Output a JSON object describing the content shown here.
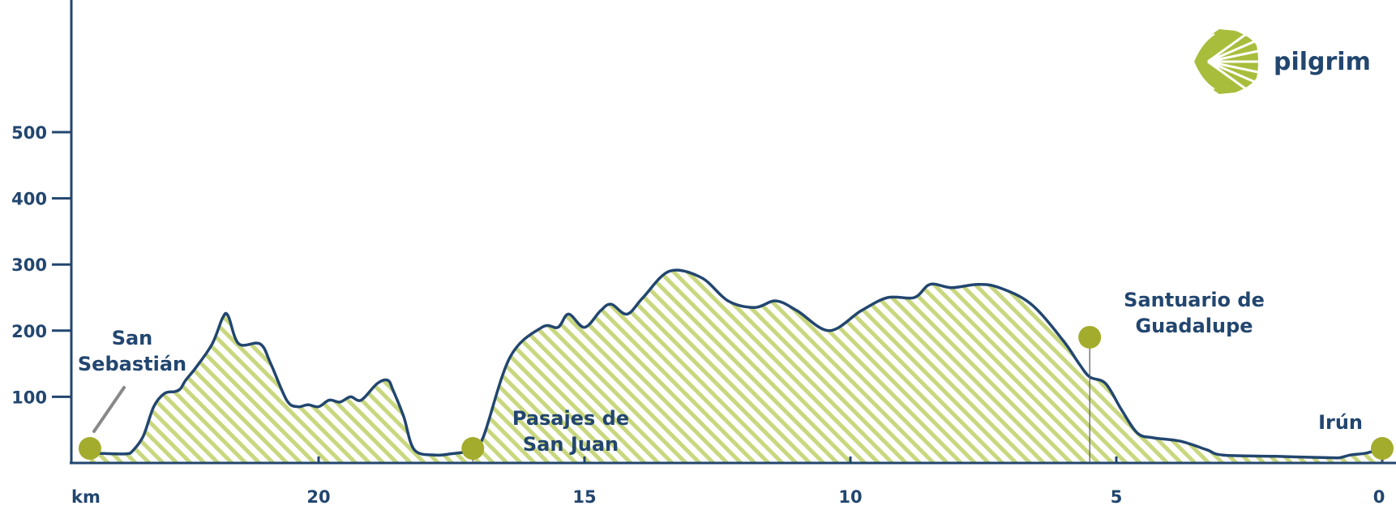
{
  "chart_data": {
    "type": "area",
    "title": "",
    "xlabel": "km",
    "ylabel": "",
    "x_reversed": true,
    "xlim": [
      24.6,
      0
    ],
    "ylim": [
      0,
      600
    ],
    "x_ticks": [
      20,
      15,
      10,
      5,
      0
    ],
    "y_ticks": [
      100,
      200,
      300,
      400,
      500
    ],
    "grid": false,
    "fill_pattern": "diagonal-stripes",
    "colors": {
      "line": "#22466f",
      "fill_stripe": "#c9d77e",
      "marker": "#a3ac2c",
      "connector": "#888888",
      "logo": "#a9bd3c"
    },
    "series": [
      {
        "x": [
          24.3,
          23.9,
          23.6,
          23.5,
          23.3,
          23.1,
          22.9,
          22.7,
          22.6,
          22.5,
          22.3,
          22.0,
          21.8,
          21.7,
          21.5,
          21.1,
          20.9,
          20.6,
          20.4,
          20.2,
          20.0,
          19.8,
          19.6,
          19.4,
          19.2,
          18.9,
          18.7,
          18.6,
          18.4,
          18.2,
          17.8,
          17.5,
          17.2,
          17.1,
          16.9,
          16.4,
          15.8,
          15.5,
          15.3,
          15.0,
          14.7,
          14.5,
          14.2,
          13.9,
          13.4,
          12.8,
          12.3,
          11.8,
          11.4,
          11.0,
          10.4,
          9.8,
          9.3,
          8.8,
          8.5,
          8.1,
          7.6,
          7.2,
          6.6,
          6.0,
          5.7,
          5.5,
          5.2,
          4.9,
          4.6,
          4.3,
          3.8,
          3.3,
          3.0,
          2.0,
          1.0,
          0.8,
          0.6,
          0.3,
          0.0
        ],
        "y": [
          15,
          14,
          14,
          18,
          40,
          85,
          105,
          108,
          112,
          125,
          145,
          180,
          220,
          222,
          180,
          180,
          150,
          95,
          85,
          88,
          85,
          95,
          92,
          100,
          95,
          120,
          125,
          110,
          70,
          20,
          12,
          14,
          17,
          20,
          40,
          160,
          205,
          205,
          225,
          205,
          230,
          240,
          225,
          250,
          290,
          280,
          245,
          235,
          245,
          230,
          200,
          230,
          250,
          250,
          270,
          265,
          270,
          265,
          240,
          185,
          150,
          130,
          120,
          80,
          45,
          38,
          33,
          20,
          12,
          10,
          8,
          8,
          12,
          15,
          22
        ]
      }
    ],
    "places": [
      {
        "name_lines": [
          "San",
          "Sebastián"
        ],
        "km": 24.3,
        "elevation": 22
      },
      {
        "name_lines": [
          "Pasajes de",
          "San Juan"
        ],
        "km": 17.1,
        "elevation": 22
      },
      {
        "name_lines": [
          "Santuario de",
          "Guadalupe"
        ],
        "km": 5.5,
        "elevation": 190
      },
      {
        "name_lines": [
          "Irún"
        ],
        "km": 0.0,
        "elevation": 22
      }
    ]
  },
  "logo": {
    "text": "pilgrim",
    "icon": "scallop-shell-icon"
  }
}
